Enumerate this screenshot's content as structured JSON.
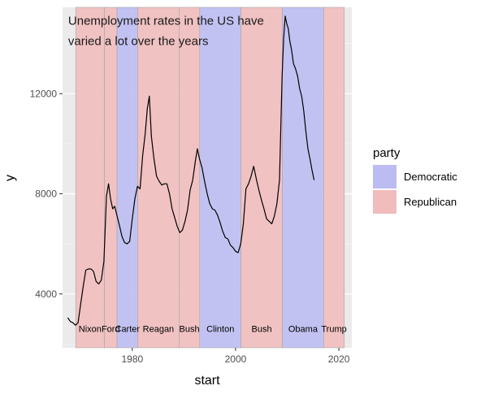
{
  "chart_data": {
    "type": "line",
    "xlabel": "start",
    "ylabel": "y",
    "xlim": [
      1966.5,
      2022.5
    ],
    "ylim": [
      1850,
      15450
    ],
    "x_ticks": [
      1980,
      2000,
      2020
    ],
    "y_ticks": [
      4000,
      8000,
      12000
    ],
    "grid": true,
    "legend": {
      "title": "party",
      "placement": "right",
      "entries": [
        {
          "label": "Democratic",
          "color": "#bcbcf2"
        },
        {
          "label": "Republican",
          "color": "#f1bcbc"
        }
      ]
    },
    "annotation": {
      "lines": [
        "Unemployment rates in the US have",
        "varied a lot over the years"
      ],
      "x": 1969,
      "y": 14950
    },
    "presidents": [
      {
        "name": "Nixon",
        "start": 1969.05,
        "end": 1974.6,
        "party": "Republican"
      },
      {
        "name": "Ford",
        "start": 1974.6,
        "end": 1977.05,
        "party": "Republican"
      },
      {
        "name": "Carter",
        "start": 1977.05,
        "end": 1981.05,
        "party": "Democratic"
      },
      {
        "name": "Reagan",
        "start": 1981.05,
        "end": 1989.05,
        "party": "Republican"
      },
      {
        "name": "Bush",
        "start": 1989.05,
        "end": 1993.05,
        "party": "Republican"
      },
      {
        "name": "Clinton",
        "start": 1993.05,
        "end": 2001.05,
        "party": "Democratic"
      },
      {
        "name": "Bush",
        "start": 2001.05,
        "end": 2009.05,
        "party": "Republican"
      },
      {
        "name": "Obama",
        "start": 2009.05,
        "end": 2017.05,
        "party": "Democratic"
      },
      {
        "name": "Trump",
        "start": 2017.05,
        "end": 2021.05,
        "party": "Republican"
      }
    ],
    "president_label_y": 2620,
    "series": [
      {
        "x": [
          1967.5,
          1968.0,
          1968.5,
          1969.0,
          1969.5,
          1970.0,
          1970.5,
          1971.0,
          1971.5,
          1972.0,
          1972.5,
          1973.0,
          1973.5,
          1974.0,
          1974.5,
          1975.0,
          1975.4,
          1975.8,
          1976.2,
          1976.6,
          1977.0,
          1977.5,
          1978.0,
          1978.5,
          1979.0,
          1979.5,
          1980.0,
          1980.5,
          1981.0,
          1981.5,
          1982.0,
          1982.5,
          1982.9,
          1983.3,
          1983.7,
          1984.2,
          1984.7,
          1985.2,
          1985.7,
          1986.2,
          1986.7,
          1987.2,
          1987.7,
          1988.2,
          1988.7,
          1989.2,
          1989.7,
          1990.2,
          1990.7,
          1991.2,
          1991.7,
          1992.2,
          1992.6,
          1993.0,
          1993.5,
          1994.0,
          1994.5,
          1995.0,
          1995.5,
          1996.0,
          1996.5,
          1997.0,
          1997.5,
          1998.0,
          1998.5,
          1999.0,
          1999.5,
          2000.0,
          2000.5,
          2001.0,
          2001.5,
          2002.0,
          2002.5,
          2003.0,
          2003.5,
          2004.0,
          2004.5,
          2005.0,
          2005.5,
          2006.0,
          2006.5,
          2007.0,
          2007.5,
          2008.0,
          2008.5,
          2009.0,
          2009.3,
          2009.6,
          2009.9,
          2010.2,
          2010.5,
          2010.8,
          2011.2,
          2011.6,
          2012.0,
          2012.4,
          2012.8,
          2013.2,
          2013.6,
          2014.0,
          2014.4,
          2014.8,
          2015.2
        ],
        "y": [
          3050,
          2900,
          2850,
          2750,
          2850,
          3600,
          4300,
          4950,
          5000,
          5000,
          4900,
          4500,
          4400,
          4550,
          5300,
          7900,
          8400,
          7800,
          7400,
          7500,
          7150,
          6750,
          6300,
          6050,
          6000,
          6100,
          7000,
          7800,
          8300,
          8200,
          9500,
          10400,
          11400,
          11900,
          10300,
          9400,
          8700,
          8500,
          8350,
          8400,
          8400,
          8000,
          7400,
          7050,
          6700,
          6450,
          6550,
          6900,
          7350,
          8150,
          8550,
          9300,
          9800,
          9400,
          9050,
          8500,
          8000,
          7600,
          7400,
          7350,
          7150,
          6850,
          6500,
          6250,
          6200,
          5950,
          5850,
          5700,
          5650,
          6000,
          6800,
          8200,
          8400,
          8700,
          9100,
          8600,
          8150,
          7750,
          7400,
          7000,
          6900,
          6800,
          7100,
          7600,
          8550,
          12700,
          14200,
          15100,
          14800,
          14600,
          14100,
          13800,
          13200,
          13000,
          12700,
          12200,
          11900,
          11300,
          10500,
          9800,
          9400,
          8950,
          8550
        ]
      }
    ]
  }
}
